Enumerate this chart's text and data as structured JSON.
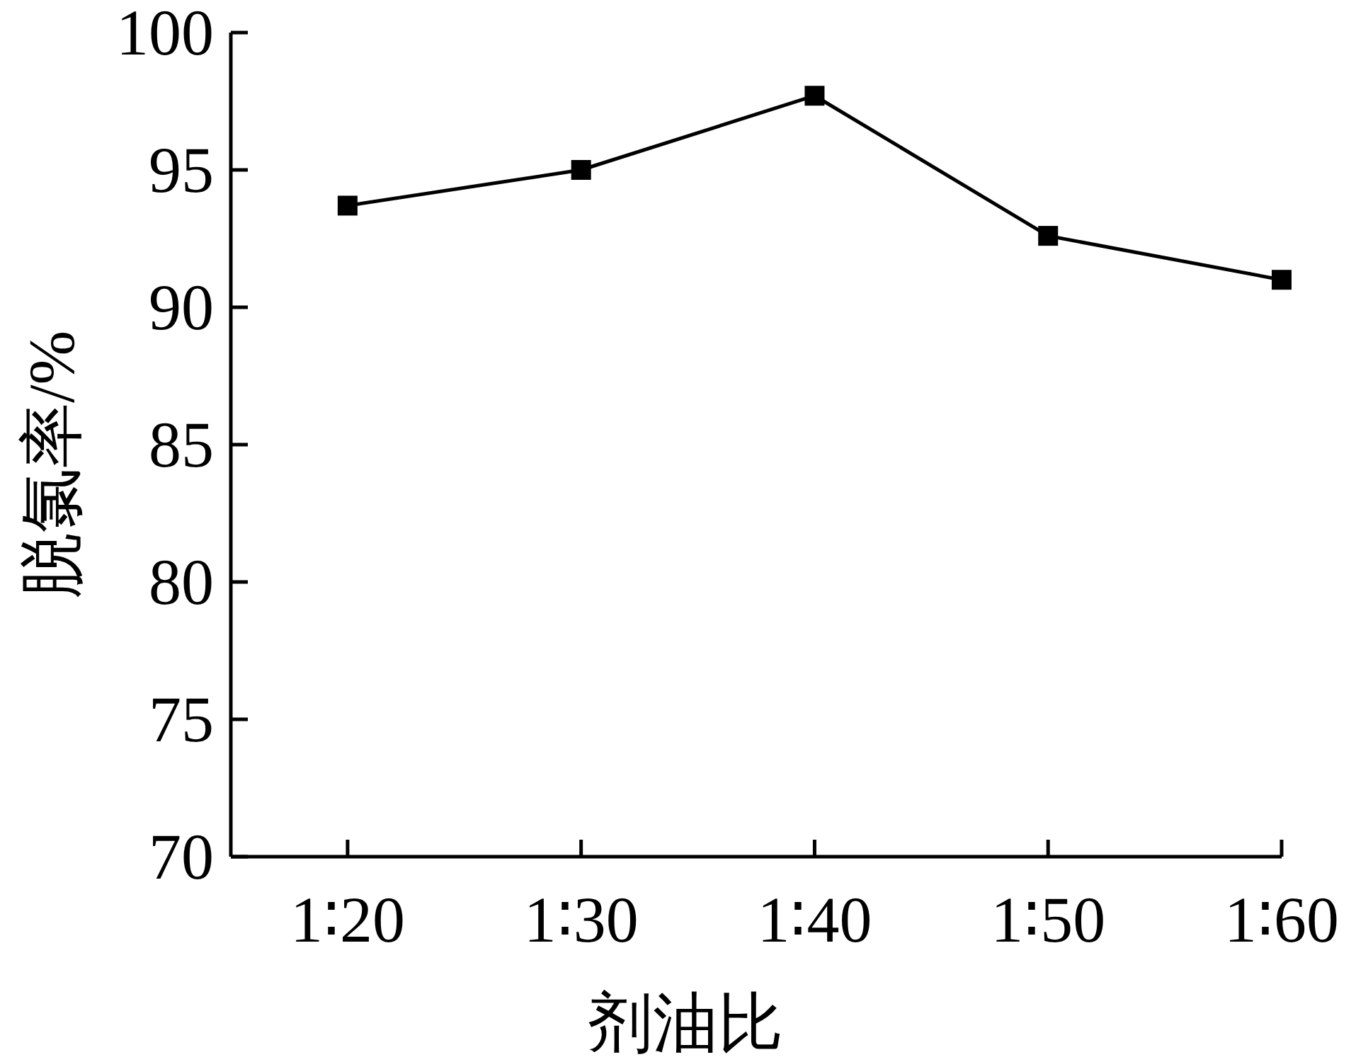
{
  "chart_data": {
    "type": "line",
    "xlabel": "剂油比",
    "ylabel": "脱氯率/%",
    "categories": [
      "1∶20",
      "1∶30",
      "1∶40",
      "1∶50",
      "1∶60"
    ],
    "values": [
      93.7,
      95.0,
      97.7,
      92.6,
      91.0
    ],
    "color": "#000000",
    "marker": "square",
    "line_style": "solid",
    "ylim": [
      70,
      100
    ],
    "yticks": [
      70,
      75,
      80,
      85,
      90,
      95,
      100
    ]
  }
}
